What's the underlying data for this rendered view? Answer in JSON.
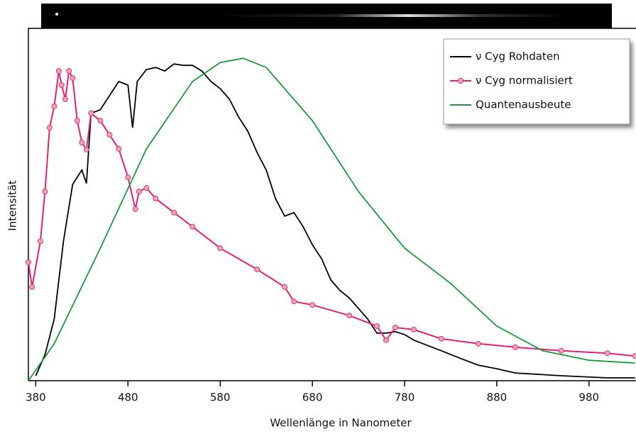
{
  "chart_data": {
    "type": "line",
    "xlabel": "Wellenlänge in Nanometer",
    "ylabel": "Intensität",
    "xlim": [
      372,
      1031
    ],
    "ylim": [
      0,
      100
    ],
    "xticks": [
      380,
      480,
      580,
      680,
      780,
      880,
      980
    ],
    "legend": "upper right",
    "series": [
      {
        "name": "ν Cyg Rohdaten",
        "color": "#000000",
        "marker": false,
        "x": [
          380,
          390,
          400,
          410,
          420,
          430,
          435,
          440,
          450,
          460,
          470,
          480,
          485,
          490,
          500,
          510,
          520,
          530,
          540,
          550,
          560,
          570,
          580,
          590,
          600,
          610,
          620,
          630,
          640,
          650,
          660,
          670,
          680,
          690,
          700,
          710,
          720,
          730,
          740,
          750,
          760,
          770,
          780,
          790,
          800,
          820,
          840,
          860,
          880,
          900,
          950,
          1000,
          1030
        ],
        "values": [
          1.4,
          7.4,
          17.5,
          39.6,
          55.7,
          59.8,
          56,
          75.9,
          76.9,
          80.9,
          84.9,
          83.9,
          71.8,
          84.9,
          88.3,
          88.9,
          87.9,
          89.9,
          89.5,
          89.5,
          87.9,
          84.9,
          82.9,
          79.9,
          74.8,
          70.8,
          64.8,
          59.8,
          51.7,
          46.7,
          47.7,
          43.7,
          38.6,
          34.6,
          28.6,
          25.6,
          23.5,
          20.5,
          17.5,
          13.5,
          13.5,
          13.9,
          13.1,
          11.5,
          10.5,
          8.5,
          6.4,
          4.4,
          3.4,
          2.2,
          1.4,
          0.8,
          0.8
        ]
      },
      {
        "name": "ν Cyg normalisiert",
        "color": "#e0207a",
        "marker": true,
        "x": [
          372,
          376,
          385,
          390,
          395,
          400,
          405,
          408,
          412,
          416,
          420,
          425,
          430,
          435,
          440,
          450,
          460,
          470,
          480,
          488,
          492,
          500,
          510,
          530,
          550,
          580,
          620,
          650,
          660,
          680,
          720,
          750,
          760,
          770,
          790,
          820,
          860,
          900,
          950,
          1000,
          1030
        ],
        "values": [
          33.6,
          26.6,
          39.6,
          53.7,
          71.8,
          77.9,
          87.9,
          83.9,
          79.9,
          87.9,
          85.9,
          73.8,
          67.6,
          65.6,
          75.9,
          73.8,
          69.8,
          65.8,
          57.7,
          48.7,
          53.7,
          54.7,
          51.7,
          47.7,
          43.7,
          37.6,
          31.6,
          26.6,
          22.5,
          21.5,
          18.5,
          15.5,
          11.5,
          15.1,
          14.5,
          11.9,
          10.5,
          9.5,
          8.5,
          7.8,
          7.0
        ]
      },
      {
        "name": "Quantenausbeute",
        "color": "#1a9a3a",
        "marker": false,
        "x": [
          372,
          400,
          450,
          500,
          550,
          580,
          605,
          630,
          680,
          730,
          780,
          830,
          880,
          930,
          980,
          1030
        ],
        "values": [
          0,
          10.5,
          37.6,
          65.8,
          84.9,
          90.3,
          91.5,
          88.9,
          73.8,
          53.7,
          37.6,
          27.6,
          15.5,
          8.5,
          5.8,
          5.0
        ]
      }
    ]
  }
}
